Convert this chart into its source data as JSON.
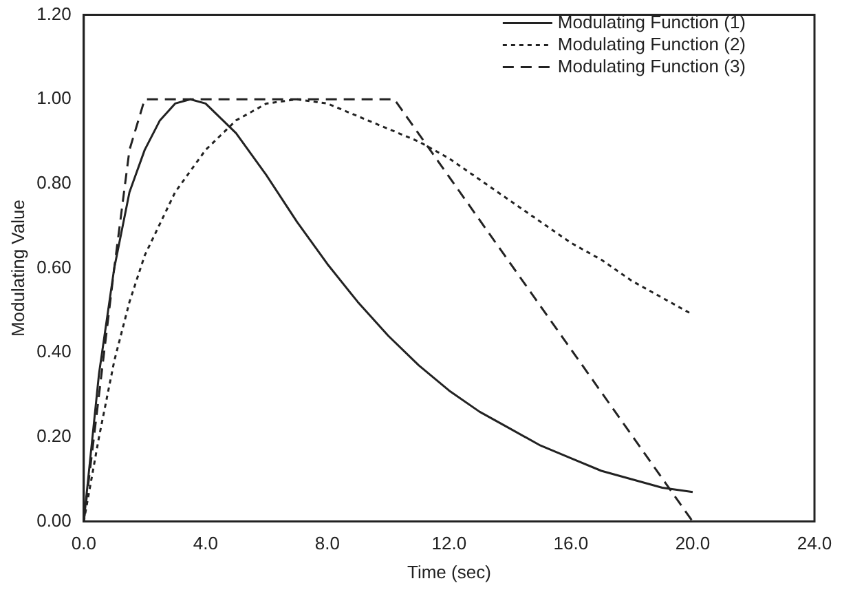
{
  "chart_data": {
    "type": "line",
    "xlabel": "Time (sec)",
    "ylabel": "Modulating Value",
    "xlim": [
      0,
      24
    ],
    "ylim": [
      0,
      1.2
    ],
    "xticks": [
      {
        "value": 0,
        "label": "0.0"
      },
      {
        "value": 4,
        "label": "4.0"
      },
      {
        "value": 8,
        "label": "8.0"
      },
      {
        "value": 12,
        "label": "12.0"
      },
      {
        "value": 16,
        "label": "16.0"
      },
      {
        "value": 20,
        "label": "20.0"
      },
      {
        "value": 24,
        "label": "24.0"
      }
    ],
    "yticks": [
      {
        "value": 0,
        "label": "0.00"
      },
      {
        "value": 0.2,
        "label": "0.20"
      },
      {
        "value": 0.4,
        "label": "0.40"
      },
      {
        "value": 0.6,
        "label": "0.60"
      },
      {
        "value": 0.8,
        "label": "0.80"
      },
      {
        "value": 1,
        "label": "1.00"
      },
      {
        "value": 1.2,
        "label": "1.20"
      }
    ],
    "grid": false,
    "legend": "top right",
    "marker": "none",
    "series": [
      {
        "name": "Modulating Function (1)",
        "color": "#222222",
        "line_style": "solid",
        "x": [
          0,
          0.5,
          1,
          1.5,
          2,
          2.5,
          3,
          3.5,
          4,
          5,
          6,
          7,
          8,
          9,
          10,
          11,
          12,
          13,
          14,
          15,
          16,
          17,
          18,
          19,
          20
        ],
        "values": [
          0,
          0.35,
          0.6,
          0.78,
          0.88,
          0.95,
          0.99,
          1,
          0.99,
          0.92,
          0.82,
          0.71,
          0.61,
          0.52,
          0.44,
          0.37,
          0.31,
          0.26,
          0.22,
          0.18,
          0.15,
          0.12,
          0.1,
          0.08,
          0.07
        ]
      },
      {
        "name": "Modulating Function (2)",
        "color": "#222222",
        "line_style": "dotted",
        "x": [
          0,
          0.5,
          1,
          1.5,
          2,
          3,
          4,
          5,
          6,
          7,
          8,
          9,
          10,
          11,
          12,
          13,
          14,
          15,
          16,
          17,
          18,
          19,
          20
        ],
        "values": [
          0,
          0.2,
          0.38,
          0.52,
          0.63,
          0.78,
          0.88,
          0.95,
          0.99,
          1,
          0.99,
          0.96,
          0.93,
          0.9,
          0.86,
          0.81,
          0.76,
          0.71,
          0.66,
          0.62,
          0.57,
          0.53,
          0.49
        ]
      },
      {
        "name": "Modulating Function (3)",
        "color": "#222222",
        "line_style": "dashed",
        "x": [
          0,
          0.5,
          1,
          1.5,
          2,
          10.2,
          20
        ],
        "values": [
          0,
          0.3,
          0.6,
          0.88,
          1,
          1,
          0
        ]
      }
    ]
  }
}
